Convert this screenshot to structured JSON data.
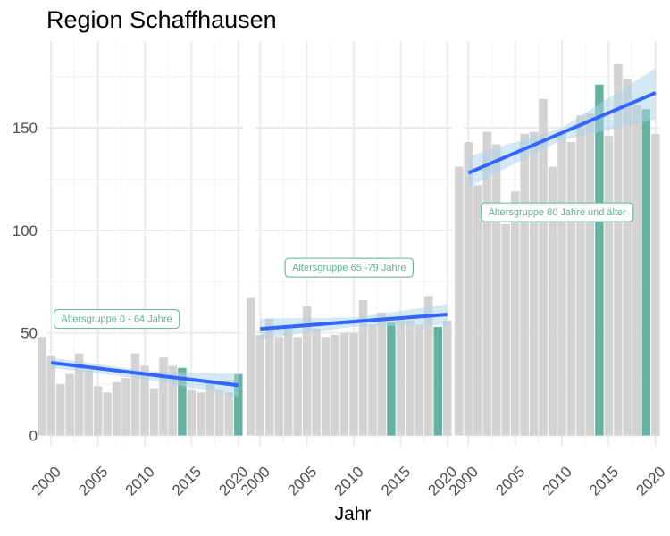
{
  "chart_data": {
    "type": "bar",
    "title": "Region Schaffhausen",
    "xlabel": "Jahr",
    "ylabel": "",
    "x_ticks": [
      2000,
      2005,
      2010,
      2015,
      2020
    ],
    "y_ticks": [
      0,
      50,
      100,
      150
    ],
    "ylim": [
      0,
      180
    ],
    "xlim": [
      1999.5,
      2020.5
    ],
    "grid": true,
    "colors": {
      "bar": "#d3d3d3",
      "highlight": "#66b2a0",
      "trend": "#3366ff",
      "ribbon": "#a9d4ea",
      "annotation": "#5fae96",
      "grid": "#ebebeb"
    },
    "panels": [
      {
        "annotation": "Altersgruppe 0 - 64 Jahre",
        "annotation_pos": [
          2007,
          57
        ],
        "years": [
          1999,
          2000,
          2001,
          2002,
          2003,
          2004,
          2005,
          2006,
          2007,
          2008,
          2009,
          2010,
          2011,
          2012,
          2013,
          2014,
          2015,
          2016,
          2017,
          2018,
          2019,
          2020
        ],
        "values": [
          48,
          39,
          25,
          30,
          40,
          32,
          24,
          21,
          26,
          28,
          40,
          34,
          23,
          38,
          34,
          33,
          22,
          21,
          27,
          22,
          21,
          30
        ],
        "highlight_years": [
          2014,
          2020
        ],
        "trend": [
          [
            2000,
            35.5
          ],
          [
            2020,
            24.5
          ]
        ],
        "ribbon_upper": [
          [
            2000,
            38
          ],
          [
            2010,
            31.5
          ],
          [
            2020,
            30
          ]
        ],
        "ribbon_lower": [
          [
            2000,
            33
          ],
          [
            2010,
            27.5
          ],
          [
            2020,
            19
          ]
        ]
      },
      {
        "annotation": "Altersgruppe 65 -79 Jahre",
        "annotation_pos": [
          2009.5,
          82
        ],
        "years": [
          1999,
          2000,
          2001,
          2002,
          2003,
          2004,
          2005,
          2006,
          2007,
          2008,
          2009,
          2010,
          2011,
          2012,
          2013,
          2014,
          2015,
          2016,
          2017,
          2018,
          2019,
          2020
        ],
        "values": [
          67,
          49,
          57,
          48,
          53,
          48,
          63,
          52,
          48,
          49,
          50,
          50,
          66,
          54,
          60,
          55,
          58,
          56,
          54,
          68,
          53,
          56
        ],
        "highlight_years": [
          2014,
          2019
        ],
        "trend": [
          [
            2000,
            52
          ],
          [
            2020,
            59
          ]
        ],
        "ribbon_upper": [
          [
            2000,
            57
          ],
          [
            2010,
            57.5
          ],
          [
            2020,
            64
          ]
        ],
        "ribbon_lower": [
          [
            2000,
            47
          ],
          [
            2010,
            53
          ],
          [
            2020,
            54
          ]
        ]
      },
      {
        "annotation": "Altersgruppe 80 Jahre und älter",
        "annotation_pos": [
          2009.5,
          109
        ],
        "years": [
          1999,
          2000,
          2001,
          2002,
          2003,
          2004,
          2005,
          2006,
          2007,
          2008,
          2009,
          2010,
          2011,
          2012,
          2013,
          2014,
          2015,
          2016,
          2017,
          2018,
          2019,
          2020
        ],
        "values": [
          131,
          143,
          122,
          148,
          142,
          103,
          119,
          147,
          148,
          164,
          131,
          148,
          143,
          156,
          157,
          171,
          146,
          181,
          174,
          161,
          159,
          147
        ],
        "highlight_years": [
          2014,
          2019
        ],
        "trend": [
          [
            2000,
            128
          ],
          [
            2020,
            167
          ]
        ],
        "ribbon_upper": [
          [
            2000,
            136
          ],
          [
            2010,
            150
          ],
          [
            2020,
            179
          ]
        ],
        "ribbon_lower": [
          [
            2000,
            121
          ],
          [
            2010,
            144
          ],
          [
            2020,
            154
          ]
        ]
      }
    ]
  }
}
